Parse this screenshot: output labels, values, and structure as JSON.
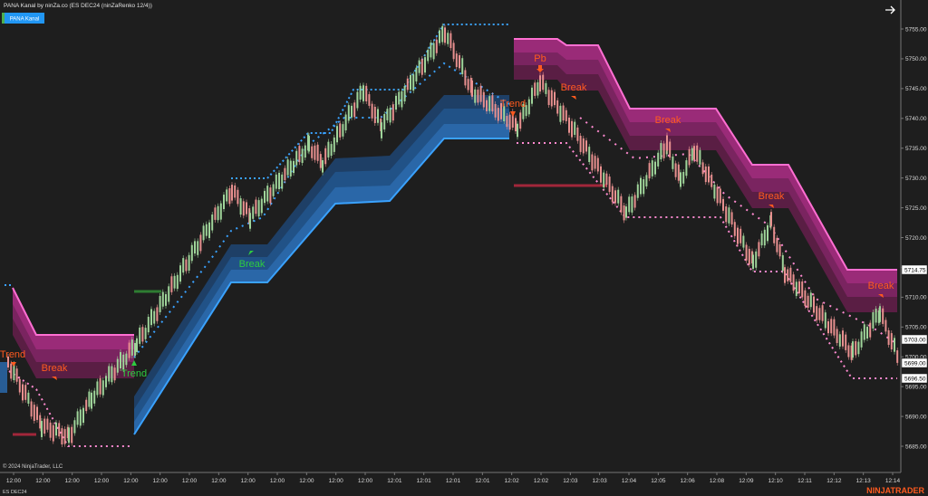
{
  "header": {
    "title": "PANA Kanal by ninZa.co (ES DEC24 (ninZaRenko 12/4))",
    "indicator_button": "PANA Kanal"
  },
  "price_axis": {
    "labels": [
      "5755.00",
      "5750.00",
      "5745.00",
      "5740.00",
      "5735.00",
      "5730.00",
      "5725.00",
      "5720.00",
      "5715.00",
      "5710.00",
      "5705.00",
      "5700.00",
      "5695.00",
      "5690.00",
      "5685.00"
    ],
    "price_tags": [
      "5714.75",
      "5703.00",
      "5699.00",
      "5696.50"
    ]
  },
  "time_axis": {
    "labels": [
      "12:00",
      "12:00",
      "12:00",
      "12:00",
      "12:00",
      "12:00",
      "12:00",
      "12:00",
      "12:00",
      "12:00",
      "12:00",
      "12:00",
      "12:00",
      "12:01",
      "12:01",
      "12:01",
      "12:01",
      "12:02",
      "12:02",
      "12:03",
      "12:03",
      "12:04",
      "12:05",
      "12:06",
      "12:08",
      "12:09",
      "12:10",
      "12:11",
      "12:12",
      "12:13",
      "12:14"
    ]
  },
  "annotations": [
    "Trend",
    "Break",
    "Trend",
    "Break",
    "Pb",
    "Break",
    "Trend",
    "Break",
    "Break",
    "Break"
  ],
  "footer": {
    "copyright": "© 2024 NinjaTrader, LLC",
    "instrument": "ES DEC24",
    "logo": "NINJATRADER"
  }
}
